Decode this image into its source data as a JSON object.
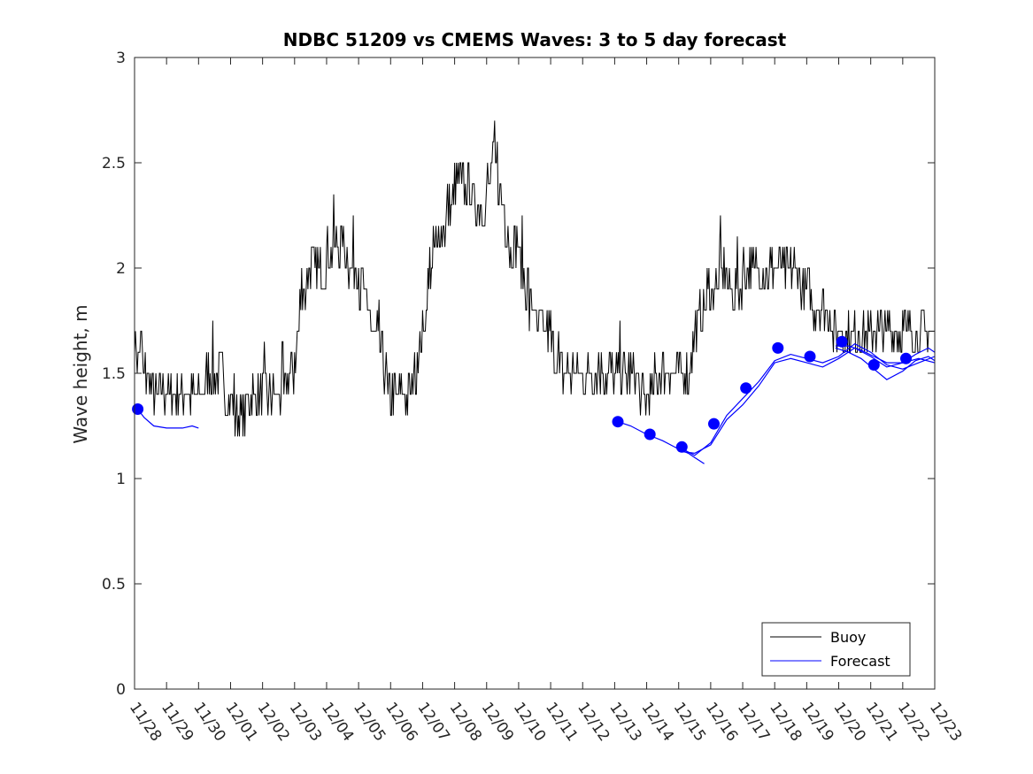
{
  "chart_data": {
    "type": "line",
    "title": "NDBC 51209 vs CMEMS Waves: 3 to 5 day forecast",
    "xlabel": "",
    "ylabel": "Wave height, m",
    "ylim": [
      0,
      3
    ],
    "yticks": [
      "0",
      "0.5",
      "1",
      "1.5",
      "2",
      "2.5",
      "3"
    ],
    "xlim": [
      0,
      25
    ],
    "xticks": [
      "11/28",
      "11/29",
      "11/30",
      "12/01",
      "12/02",
      "12/03",
      "12/04",
      "12/05",
      "12/06",
      "12/07",
      "12/08",
      "12/09",
      "12/10",
      "12/11",
      "12/12",
      "12/13",
      "12/14",
      "12/15",
      "12/16",
      "12/17",
      "12/18",
      "12/19",
      "12/20",
      "12/21",
      "12/22",
      "12/23"
    ],
    "legend": {
      "placement": "bottom-right",
      "entries": [
        "Buoy",
        "Forecast"
      ]
    },
    "colors": {
      "buoy": "#000000",
      "forecast": "#0000ff",
      "axes": "#262626"
    },
    "series": [
      {
        "name": "Buoy",
        "x": [
          0.0,
          0.25,
          0.5,
          0.75,
          1.0,
          1.25,
          1.5,
          1.75,
          2.0,
          2.25,
          2.5,
          2.75,
          3.0,
          3.25,
          3.5,
          3.75,
          4.0,
          4.25,
          4.5,
          4.75,
          5.0,
          5.25,
          5.5,
          5.75,
          6.0,
          6.25,
          6.5,
          6.75,
          7.0,
          7.25,
          7.5,
          7.75,
          8.0,
          8.25,
          8.5,
          8.75,
          9.0,
          9.25,
          9.5,
          9.75,
          10.0,
          10.25,
          10.5,
          10.75,
          11.0,
          11.25,
          11.5,
          11.75,
          12.0,
          12.25,
          12.5,
          12.75,
          13.0,
          13.25,
          13.5,
          13.75,
          14.0,
          14.25,
          14.5,
          14.75,
          15.0,
          15.25,
          15.5,
          15.75,
          16.0,
          16.25,
          16.5,
          16.75,
          17.0,
          17.25,
          17.5,
          17.75,
          18.0,
          18.25,
          18.5,
          18.75,
          19.0,
          19.25,
          19.5,
          19.75,
          20.0,
          20.25,
          20.5,
          20.75,
          21.0,
          21.25,
          21.5,
          21.75,
          22.0,
          22.25,
          22.5,
          22.75,
          23.0,
          23.25,
          23.5,
          23.75,
          24.0,
          24.25,
          24.5,
          24.75,
          25.0
        ],
        "values": [
          1.65,
          1.55,
          1.45,
          1.35,
          1.4,
          1.4,
          1.35,
          1.4,
          1.4,
          1.45,
          1.45,
          1.45,
          1.4,
          1.3,
          1.35,
          1.4,
          1.35,
          1.35,
          1.4,
          1.45,
          1.55,
          1.9,
          2.0,
          1.95,
          2.05,
          2.1,
          2.15,
          2.0,
          1.95,
          1.8,
          1.7,
          1.55,
          1.4,
          1.35,
          1.35,
          1.5,
          1.7,
          2.0,
          2.15,
          2.25,
          2.35,
          2.4,
          2.35,
          2.3,
          2.35,
          2.55,
          2.3,
          2.1,
          2.05,
          1.9,
          1.75,
          1.7,
          1.65,
          1.55,
          1.45,
          1.45,
          1.45,
          1.5,
          1.55,
          1.45,
          1.45,
          1.5,
          1.5,
          1.45,
          1.4,
          1.45,
          1.45,
          1.45,
          1.45,
          1.5,
          1.65,
          1.8,
          1.9,
          1.95,
          1.95,
          1.9,
          1.95,
          1.95,
          1.95,
          1.95,
          2.0,
          1.95,
          2.0,
          1.95,
          1.9,
          1.8,
          1.75,
          1.75,
          1.7,
          1.65,
          1.65,
          1.7,
          1.65,
          1.7,
          1.65,
          1.65,
          1.65,
          1.65,
          1.65,
          1.65,
          1.65
        ]
      },
      {
        "name": "Forecast",
        "segments": [
          {
            "x": [
              0.1,
              0.3,
              0.6,
              1.0,
              1.5,
              1.8,
              2.0
            ],
            "values": [
              1.33,
              1.29,
              1.25,
              1.24,
              1.24,
              1.25,
              1.24
            ]
          },
          {
            "x": [
              15.1,
              15.5,
              16.0,
              16.5,
              17.0,
              17.3,
              17.5,
              17.8
            ],
            "values": [
              1.27,
              1.25,
              1.21,
              1.18,
              1.14,
              1.12,
              1.1,
              1.07
            ]
          },
          {
            "x": [
              17.0,
              17.5,
              18.0,
              18.5,
              19.0,
              19.5,
              20.0,
              20.5,
              21.0,
              21.5,
              22.0,
              22.5,
              23.0,
              23.5,
              24.0,
              24.5,
              25.0
            ],
            "values": [
              1.15,
              1.11,
              1.17,
              1.3,
              1.38,
              1.46,
              1.56,
              1.59,
              1.57,
              1.55,
              1.58,
              1.64,
              1.6,
              1.54,
              1.52,
              1.55,
              1.58
            ]
          },
          {
            "x": [
              17.0,
              17.5,
              18.0,
              18.5,
              19.0,
              19.5,
              20.0,
              20.5,
              21.0,
              21.5,
              22.0,
              22.5,
              23.0,
              23.5,
              24.0,
              24.5,
              25.0
            ],
            "values": [
              1.13,
              1.12,
              1.16,
              1.28,
              1.35,
              1.44,
              1.55,
              1.57,
              1.55,
              1.53,
              1.57,
              1.62,
              1.58,
              1.53,
              1.55,
              1.57,
              1.55
            ]
          },
          {
            "x": [
              21.9,
              22.3,
              22.7,
              23.1,
              23.5,
              24.0,
              24.4,
              24.8,
              25.0
            ],
            "values": [
              1.63,
              1.63,
              1.61,
              1.58,
              1.55,
              1.55,
              1.59,
              1.62,
              1.6
            ]
          },
          {
            "x": [
              21.9,
              22.3,
              22.7,
              23.1,
              23.5,
              24.0,
              24.4,
              24.8,
              25.0
            ],
            "values": [
              1.62,
              1.6,
              1.57,
              1.52,
              1.47,
              1.51,
              1.56,
              1.58,
              1.56
            ]
          }
        ],
        "markers": {
          "x": [
            0.1,
            15.1,
            16.1,
            17.1,
            18.1,
            19.1,
            20.1,
            21.1,
            22.1,
            23.1,
            24.1
          ],
          "values": [
            1.33,
            1.27,
            1.21,
            1.15,
            1.26,
            1.43,
            1.62,
            1.58,
            1.65,
            1.54,
            1.57
          ]
        }
      }
    ]
  }
}
